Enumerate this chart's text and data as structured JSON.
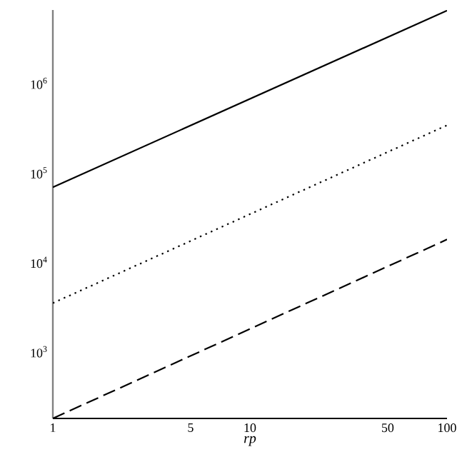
{
  "chart_data": {
    "type": "line",
    "xlabel": "rp",
    "log": "xy",
    "xlim": [
      1,
      100
    ],
    "ylim": [
      180,
      6600000
    ],
    "xticks": [
      1,
      5,
      10,
      50,
      100
    ],
    "yticks": [
      {
        "value": 1000,
        "label": "10$^{3}$"
      },
      {
        "value": 10000,
        "label": "10$^{4}$"
      },
      {
        "value": 100000,
        "label": "10$^{5}$"
      },
      {
        "value": 1000000,
        "label": "10$^{6}$"
      }
    ],
    "marker": "none",
    "x": [
      1,
      100
    ],
    "series": [
      {
        "color": "#000000",
        "line_style": "solid",
        "values": [
          69000,
          6500000
        ]
      },
      {
        "color": "#000000",
        "line_style": "dotted",
        "values": [
          3500,
          340000
        ]
      },
      {
        "color": "#000000",
        "line_style": "dashed",
        "values": [
          180,
          18000
        ]
      }
    ]
  }
}
